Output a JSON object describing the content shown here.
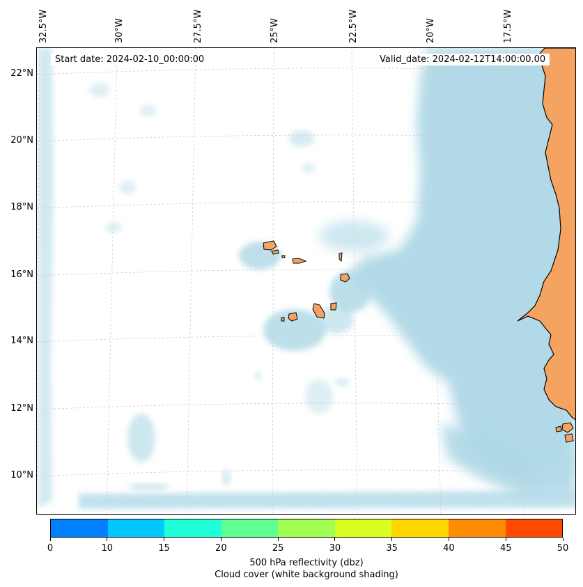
{
  "map": {
    "start_date": "Start date: 2024-02-10_00:00:00",
    "valid_date": "Valid_date: 2024-02-12T14:00:00.00",
    "longitude_labels": [
      "32.5°W",
      "30°W",
      "27.5°W",
      "25°W",
      "22.5°W",
      "20°W",
      "17.5°W"
    ],
    "latitude_labels": [
      "22°N",
      "20°N",
      "18°N",
      "16°N",
      "14°N",
      "12°N",
      "10°N"
    ],
    "land_color": "#f4a460",
    "cloud_color": "#add8e6"
  },
  "colorbar": {
    "ticks": [
      "0",
      "10",
      "15",
      "20",
      "25",
      "30",
      "35",
      "40",
      "45",
      "50"
    ],
    "colors": [
      "#0080ff",
      "#00c8ff",
      "#20ffd8",
      "#60ff90",
      "#a0ff50",
      "#d8ff20",
      "#ffd800",
      "#ff8c00",
      "#ff4800"
    ],
    "label_line1": "500 hPa reflectivity (dbz)",
    "label_line2": "Cloud cover (white background shading)"
  }
}
